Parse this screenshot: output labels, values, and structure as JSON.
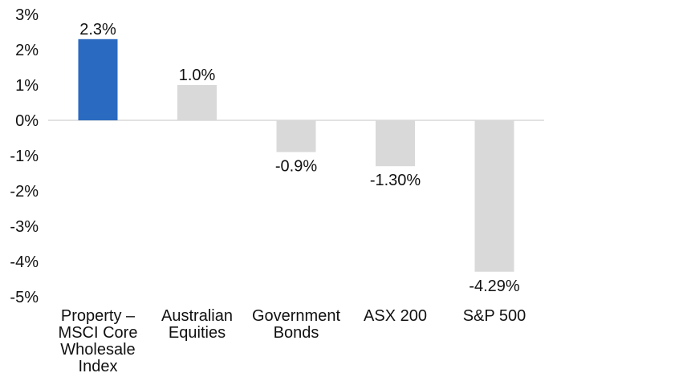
{
  "chart_data": {
    "type": "bar",
    "title": "",
    "xlabel": "",
    "ylabel": "",
    "categories": [
      [
        "Property –",
        "MSCI Core",
        "Wholesale",
        "Index"
      ],
      [
        "Australian",
        "Equities"
      ],
      [
        "Government",
        "Bonds"
      ],
      [
        "ASX 200"
      ],
      [
        "S&P 500"
      ]
    ],
    "values": [
      2.3,
      1.0,
      -0.9,
      -1.3,
      -4.29
    ],
    "data_labels": [
      "2.3%",
      "1.0%",
      "-0.9%",
      "-1.30%",
      "-4.29%"
    ],
    "yticks": [
      "3%",
      "2%",
      "1%",
      "0%",
      "-1%",
      "-2%",
      "-3%",
      "-4%",
      "-5%"
    ],
    "ylim": [
      -5,
      3
    ],
    "grid": false,
    "colors": {
      "highlight": "#2a6ac0",
      "default": "#d9d9d9",
      "zero_line": "#d9d9d9",
      "text": "#111111"
    },
    "highlight_index": 0
  }
}
